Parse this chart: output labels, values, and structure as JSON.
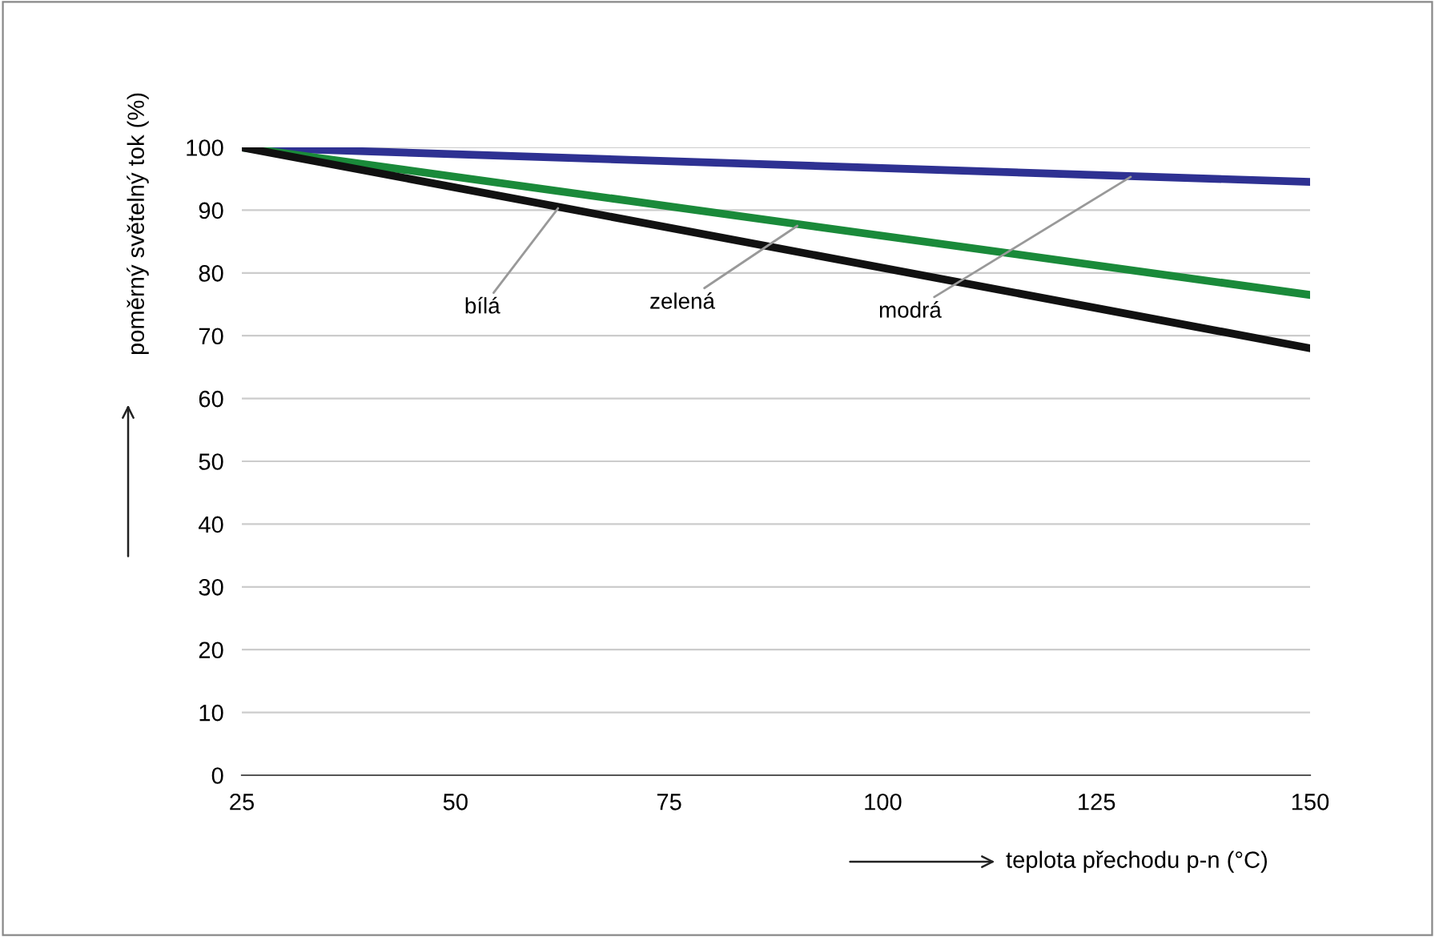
{
  "chart_data": {
    "type": "line",
    "x": [
      25,
      150
    ],
    "series": [
      {
        "color": "#2e3192",
        "values": [
          100,
          94.5
        ]
      },
      {
        "color": "#1a8a3a",
        "values": [
          100,
          76.5
        ]
      },
      {
        "color": "#111111",
        "values": [
          100,
          68
        ]
      }
    ],
    "xlabel": "teplota přechodu p-n (°C)",
    "ylabel": "poměrný světelný tok (%)",
    "annotations": [
      {
        "text": "bílá",
        "x": 62,
        "y": 90.3
      },
      {
        "text": "zelená",
        "x": 90,
        "y": 87.5
      },
      {
        "text": "modrá",
        "x": 129,
        "y": 95.3
      }
    ],
    "xlim": [
      25,
      150
    ],
    "xticks": [
      25,
      50,
      75,
      100,
      125,
      150
    ],
    "ylim": [
      0,
      100
    ],
    "yticks": [
      0,
      10,
      20,
      30,
      40,
      50,
      60,
      70,
      80,
      90,
      100
    ],
    "grid": "y",
    "marker": "none",
    "line_style": "solid",
    "legend": false
  }
}
